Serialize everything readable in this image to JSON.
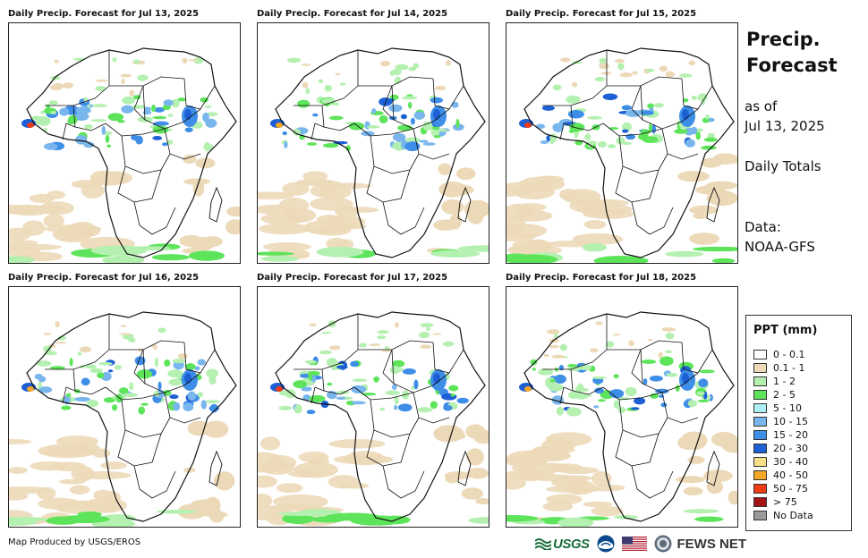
{
  "panels": [
    {
      "title": "Daily Precip. Forecast for Jul 13, 2025"
    },
    {
      "title": "Daily Precip. Forecast for Jul 14, 2025"
    },
    {
      "title": "Daily Precip. Forecast for Jul 15, 2025"
    },
    {
      "title": "Daily Precip. Forecast for Jul 16, 2025"
    },
    {
      "title": "Daily Precip. Forecast for Jul 17, 2025"
    },
    {
      "title": "Daily Precip. Forecast for Jul 18, 2025"
    }
  ],
  "side": {
    "title_line1": "Precip.",
    "title_line2": "Forecast",
    "as_of_label": "as of",
    "as_of_date": "Jul 13, 2025",
    "totals": "Daily Totals",
    "data_label": "Data:",
    "data_source": "NOAA-GFS"
  },
  "legend": {
    "title": "PPT (mm)",
    "items": [
      {
        "label": "0 - 0.1",
        "color": "#ffffff"
      },
      {
        "label": "0.1 - 1",
        "color": "#ecd9b8"
      },
      {
        "label": "1 - 2",
        "color": "#b4f0b0"
      },
      {
        "label": "2 - 5",
        "color": "#5de45a"
      },
      {
        "label": "5 - 10",
        "color": "#aeeef5"
      },
      {
        "label": "10 - 15",
        "color": "#79b6ee"
      },
      {
        "label": "15 - 20",
        "color": "#3e8ee8"
      },
      {
        "label": "20 - 30",
        "color": "#1d5fd4"
      },
      {
        "label": "30 - 40",
        "color": "#f7e08a"
      },
      {
        "label": "40 - 50",
        "color": "#f5a623"
      },
      {
        "label": "50 - 75",
        "color": "#ef3b16"
      },
      {
        "label": "> 75",
        "color": "#a31515"
      },
      {
        "label": "No Data",
        "color": "#9a9a9a"
      }
    ]
  },
  "footer": {
    "credit": "Map Produced by USGS/EROS",
    "usgs_logo": "USGS",
    "fews_logo": "FEWS NET"
  }
}
